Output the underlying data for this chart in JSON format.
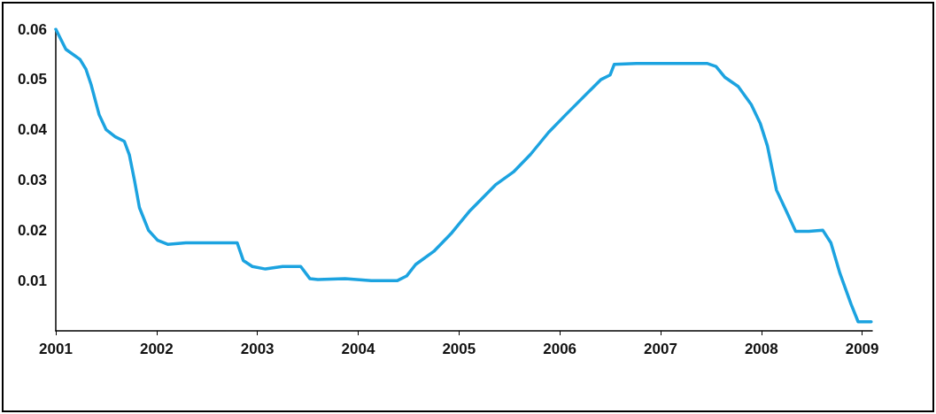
{
  "chart_data": {
    "type": "line",
    "x": [
      2001.0,
      2001.1,
      2001.24,
      2001.3,
      2001.35,
      2001.43,
      2001.5,
      2001.59,
      2001.68,
      2001.73,
      2001.78,
      2001.83,
      2001.92,
      2002.01,
      2002.11,
      2002.29,
      2002.55,
      2002.8,
      2002.86,
      2002.95,
      2003.08,
      2003.25,
      2003.43,
      2003.52,
      2003.6,
      2003.87,
      2004.13,
      2004.39,
      2004.48,
      2004.57,
      2004.75,
      2004.92,
      2005.1,
      2005.36,
      2005.54,
      2005.71,
      2005.89,
      2006.06,
      2006.28,
      2006.41,
      2006.5,
      2006.54,
      2006.76,
      2007.11,
      2007.46,
      2007.55,
      2007.64,
      2007.77,
      2007.9,
      2007.99,
      2008.06,
      2008.15,
      2008.25,
      2008.34,
      2008.47,
      2008.61,
      2008.69,
      2008.78,
      2008.89,
      2008.96,
      2009.09
    ],
    "series": [
      {
        "color": "#1ca3e0",
        "values": [
          0.06,
          0.056,
          0.054,
          0.052,
          0.049,
          0.043,
          0.04,
          0.0386,
          0.0377,
          0.035,
          0.03,
          0.0245,
          0.02,
          0.018,
          0.0172,
          0.0175,
          0.0175,
          0.0175,
          0.014,
          0.0128,
          0.0123,
          0.0128,
          0.0128,
          0.0104,
          0.0102,
          0.0104,
          0.01,
          0.01,
          0.0109,
          0.0132,
          0.0158,
          0.0193,
          0.0237,
          0.029,
          0.0316,
          0.0351,
          0.0395,
          0.043,
          0.0474,
          0.05,
          0.0509,
          0.053,
          0.0532,
          0.0532,
          0.0532,
          0.0526,
          0.0504,
          0.0486,
          0.045,
          0.0412,
          0.0368,
          0.028,
          0.0237,
          0.0198,
          0.0198,
          0.02,
          0.0175,
          0.0114,
          0.0053,
          0.0018,
          0.0018
        ]
      }
    ],
    "xlim": [
      2001,
      2009.1
    ],
    "xticks": [
      2001,
      2002,
      2003,
      2004,
      2005,
      2006,
      2007,
      2008,
      2009
    ],
    "ylim": [
      0,
      0.06
    ],
    "yticks": [
      0.01,
      0.02,
      0.03,
      0.04,
      0.05,
      0.06
    ],
    "grid": false,
    "marker": "none",
    "line_style": "solid"
  }
}
